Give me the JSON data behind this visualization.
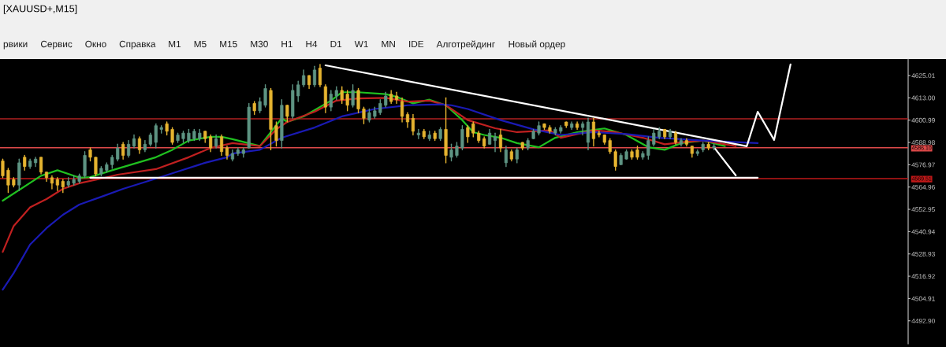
{
  "chart_data": {
    "type": "candlestick",
    "title": "[XAUUSD+,M15]",
    "annotations": [
      "рвики",
      "Сервис",
      "Окно",
      "Справка",
      "M1",
      "M5",
      "M15",
      "M30",
      "H1",
      "H4",
      "D1",
      "W1",
      "MN",
      "IDE",
      "Алготрейдинг",
      "Новый ордер"
    ],
    "categories": [
      null,
      null,
      null,
      null,
      null,
      null,
      null,
      null,
      null,
      null,
      null,
      null,
      null,
      null,
      null,
      null,
      null,
      null,
      null,
      null,
      null,
      null,
      null,
      null,
      null,
      null,
      null,
      null,
      null,
      null,
      null,
      null,
      null,
      null,
      null,
      null,
      null,
      null,
      null,
      null,
      null,
      null,
      null,
      null,
      null,
      null,
      null,
      null,
      null,
      null,
      null,
      null,
      null,
      null,
      null,
      null,
      null,
      null,
      null,
      null,
      null,
      null,
      null,
      null,
      null,
      null,
      null,
      null,
      null,
      null,
      null,
      null,
      null,
      null,
      null,
      null,
      null,
      null,
      null,
      null,
      null,
      null,
      null,
      null,
      null,
      null,
      null,
      null,
      null,
      null,
      null,
      null,
      null,
      null,
      null,
      null,
      null,
      null,
      null,
      null,
      null,
      null,
      null,
      null,
      null,
      null,
      null,
      null,
      null,
      null,
      null,
      null,
      null,
      null,
      null,
      null,
      null,
      null,
      null,
      null,
      null,
      null,
      null,
      null,
      null,
      null,
      null,
      null,
      null,
      null,
      null,
      null,
      null,
      null,
      null,
      null,
      null,
      null,
      null,
      null,
      null,
      null,
      null,
      null,
      null,
      null,
      null,
      null,
      null,
      null,
      null,
      null,
      null,
      null,
      null,
      null,
      null,
      null,
      null,
      null,
      null,
      null,
      null,
      null,
      null,
      null
    ],
    "colors": [
      "#e6b430",
      "#e6b430",
      "#e6b430",
      "#5e9483",
      "#e6b430",
      "#5e9483",
      "#5e9483",
      "#e6b430",
      "#e6b430",
      "#e6b430",
      "#e6b430",
      "#e6b430",
      "#5e9483",
      "#5e9483",
      "#5e9483",
      "#5e9483",
      "#e6b430",
      "#e6b430",
      "#5e9483",
      "#5e9483",
      "#5e9483",
      "#5e9483",
      "#e6b430",
      "#5e9483",
      "#5e9483",
      "#e6b430",
      "#5e9483",
      "#5e9483",
      "#5e9483",
      "#5e9483",
      "#e6b430",
      "#e6b430",
      "#5e9483",
      "#5e9483",
      "#5e9483",
      "#5e9483",
      "#5e9483",
      "#e6b430",
      "#e6b430",
      "#5e9483",
      "#e6b430",
      "#e6b430",
      "#5e9483",
      "#5e9483",
      "#5e9483",
      "#5e9483",
      "#e6b430",
      "#5e9483",
      "#5e9483",
      "#e6b430",
      "#e6b430",
      "#5e9483",
      "#e6b430",
      "#5e9483",
      "#5e9483",
      "#5e9483",
      "#e6b430",
      "#5e9483",
      "#e6b430",
      "#e6b430",
      "#5e9483",
      "#5e9483",
      "#e6b430",
      "#e6b430",
      "#5e9483",
      "#e6b430",
      "#e6b430",
      "#5e9483",
      "#5e9483",
      "#5e9483",
      "#5e9483",
      "#e6b430",
      "#e6b430",
      "#e6b430",
      "#e6b430",
      "#e6b430",
      "#5e9483",
      "#e6b430",
      "#5e9483",
      "#e6b430",
      "#5e9483",
      "#e6b430",
      "#5e9483",
      "#5e9483",
      "#5e9483",
      "#e6b430",
      "#e6b430",
      "#e6b430",
      "#e6b430",
      "#5e9483",
      "#5e9483",
      "#e6b430",
      "#5e9483",
      "#e6b430",
      "#5e9483",
      "#e6b430",
      "#5e9483",
      "#5e9483",
      "#5e9483",
      "#e6b430",
      "#e6b430",
      "#5e9483",
      "#5e9483",
      "#e6b430",
      "#5e9483",
      "#e6b430",
      "#5e9483",
      "#5e9483",
      "#e6b430",
      "#e6b430",
      "#e6b430",
      "#e6b430",
      "#e6b430",
      "#5e9483",
      "#5e9483",
      "#e6b430",
      "#e6b430",
      "#5e9483",
      "#5e9483",
      "#5e9483",
      "#5e9483",
      "#e6b430",
      "#5e9483",
      "#e6b430",
      "#5e9483",
      "#e6b430",
      "#e6b430",
      "#5e9483",
      "#5e9483",
      "#e6b430",
      "#5e9483",
      null,
      null,
      null,
      null,
      null,
      null,
      null,
      null,
      null,
      null,
      null,
      null,
      null,
      null,
      null,
      null,
      null,
      null,
      null,
      null,
      null,
      null,
      null,
      null,
      null,
      null,
      null,
      null,
      null,
      null,
      null,
      null,
      null,
      null,
      null
    ],
    "ohlc": [
      [
        4579,
        4580,
        4570,
        4571
      ],
      [
        4574,
        4575,
        4562,
        4566
      ],
      [
        4569,
        4570,
        4565,
        4566
      ],
      [
        4566,
        4580,
        4563,
        4578
      ],
      [
        4581,
        4582,
        4574,
        4576
      ],
      [
        4576,
        4580,
        4575,
        4579
      ],
      [
        4578,
        4581,
        4576,
        4580
      ],
      [
        4581,
        4581,
        4572,
        4573
      ],
      [
        4573,
        4573,
        4568,
        4570
      ],
      [
        4570,
        4571,
        4564,
        4567
      ],
      [
        4569,
        4570,
        4563,
        4566
      ],
      [
        4568,
        4569,
        4562,
        4565
      ],
      [
        4566,
        4570,
        4565,
        4568
      ],
      [
        4567,
        4571,
        4566,
        4569
      ],
      [
        4568,
        4572,
        4567,
        4571
      ],
      [
        4571,
        4584,
        4570,
        4582
      ],
      [
        4585,
        4586,
        4579,
        4581
      ],
      [
        4581,
        4581,
        4571,
        4572
      ],
      [
        4572,
        4576,
        4571,
        4575
      ],
      [
        4574,
        4578,
        4573,
        4577
      ],
      [
        4577,
        4582,
        4575,
        4581
      ],
      [
        4580,
        4588,
        4579,
        4586
      ],
      [
        4588,
        4589,
        4580,
        4582
      ],
      [
        4582,
        4590,
        4581,
        4588
      ],
      [
        4587,
        4593,
        4586,
        4591
      ],
      [
        4591,
        4592,
        4583,
        4585
      ],
      [
        4585,
        4590,
        4584,
        4588
      ],
      [
        4588,
        4594,
        4587,
        4593
      ],
      [
        4589,
        4599,
        4586,
        4598
      ],
      [
        4596,
        4598,
        4594,
        4597
      ],
      [
        4599,
        4600,
        4593,
        4595
      ],
      [
        4596,
        4597,
        4588,
        4589
      ],
      [
        4590,
        4594,
        4589,
        4593
      ],
      [
        4591,
        4595,
        4589,
        4594
      ],
      [
        4590,
        4596,
        4589,
        4594
      ],
      [
        4591,
        4596,
        4590,
        4595
      ],
      [
        4591,
        4596,
        4590,
        4594
      ],
      [
        4595,
        4595,
        4589,
        4591
      ],
      [
        4592,
        4593,
        4584,
        4586
      ],
      [
        4587,
        4593,
        4586,
        4591
      ],
      [
        4592,
        4593,
        4582,
        4584
      ],
      [
        4586,
        4587,
        4580,
        4582
      ],
      [
        4580,
        4585,
        4579,
        4583
      ],
      [
        4583,
        4586,
        4582,
        4585
      ],
      [
        4583,
        4586,
        4581,
        4585
      ],
      [
        4586,
        4610,
        4586,
        4608
      ],
      [
        4610,
        4611,
        4604,
        4606
      ],
      [
        4606,
        4613,
        4605,
        4611
      ],
      [
        4609,
        4620,
        4608,
        4618
      ],
      [
        4617,
        4618,
        4585,
        4596
      ],
      [
        4598,
        4600,
        4587,
        4590
      ],
      [
        4590,
        4612,
        4586,
        4609
      ],
      [
        4609,
        4609,
        4600,
        4603
      ],
      [
        4603,
        4620,
        4602,
        4617
      ],
      [
        4614,
        4622,
        4611,
        4620
      ],
      [
        4620,
        4628,
        4619,
        4625
      ],
      [
        4625,
        4625,
        4618,
        4620
      ],
      [
        4620,
        4630,
        4619,
        4628
      ],
      [
        4629,
        4631,
        4619,
        4620
      ],
      [
        4619,
        4620,
        4605,
        4608
      ],
      [
        4608,
        4617,
        4606,
        4615
      ],
      [
        4614,
        4619,
        4612,
        4617
      ],
      [
        4617,
        4619,
        4610,
        4612
      ],
      [
        4615,
        4617,
        4606,
        4609
      ],
      [
        4609,
        4620,
        4608,
        4617
      ],
      [
        4617,
        4618,
        4605,
        4607
      ],
      [
        4607,
        4608,
        4599,
        4602
      ],
      [
        4601,
        4607,
        4600,
        4605
      ],
      [
        4603,
        4608,
        4602,
        4606
      ],
      [
        4605,
        4612,
        4604,
        4610
      ],
      [
        4609,
        4616,
        4608,
        4614
      ],
      [
        4615,
        4617,
        4610,
        4611
      ],
      [
        4614,
        4616,
        4610,
        4612
      ],
      [
        4611,
        4613,
        4600,
        4603
      ],
      [
        4604,
        4605,
        4597,
        4600
      ],
      [
        4602,
        4604,
        4593,
        4595
      ],
      [
        4593,
        4596,
        4591,
        4594
      ],
      [
        4595,
        4596,
        4591,
        4592
      ],
      [
        4591,
        4595,
        4590,
        4593
      ],
      [
        4594,
        4595,
        4590,
        4591
      ],
      [
        4591,
        4597,
        4590,
        4596
      ],
      [
        4596,
        4613,
        4578,
        4582
      ],
      [
        4581,
        4588,
        4579,
        4585
      ],
      [
        4582,
        4589,
        4581,
        4587
      ],
      [
        4586,
        4598,
        4585,
        4596
      ],
      [
        4597,
        4598,
        4589,
        4592
      ],
      [
        4599,
        4600,
        4592,
        4594
      ],
      [
        4594,
        4595,
        4589,
        4590
      ],
      [
        4591,
        4592,
        4586,
        4587
      ],
      [
        4588,
        4596,
        4588,
        4594
      ],
      [
        4590,
        4594,
        4584,
        4592
      ],
      [
        4593,
        4596,
        4584,
        4586
      ],
      [
        4578,
        4587,
        4576,
        4585
      ],
      [
        4584,
        4585,
        4579,
        4580
      ],
      [
        4580,
        4586,
        4578,
        4585
      ],
      [
        4589,
        4589,
        4585,
        4586
      ],
      [
        4586,
        4591,
        4585,
        4590
      ],
      [
        4591,
        4596,
        4591,
        4595
      ],
      [
        4594,
        4600,
        4593,
        4598
      ],
      [
        4599,
        4599,
        4596,
        4597
      ],
      [
        4597,
        4598,
        4594,
        4595
      ],
      [
        4594,
        4597,
        4593,
        4596
      ],
      [
        4595,
        4598,
        4594,
        4597
      ],
      [
        4600,
        4600,
        4597,
        4598
      ],
      [
        4597,
        4600,
        4596,
        4599
      ],
      [
        4599,
        4600,
        4596,
        4597
      ],
      [
        4597,
        4600,
        4593,
        4599
      ],
      [
        4589,
        4602,
        4585,
        4600
      ],
      [
        4600,
        4602,
        4587,
        4591
      ],
      [
        4594,
        4595,
        4592,
        4593
      ],
      [
        4593,
        4593,
        4588,
        4589
      ],
      [
        4590,
        4591,
        4583,
        4584
      ],
      [
        4584,
        4585,
        4574,
        4576
      ],
      [
        4577,
        4583,
        4577,
        4582
      ],
      [
        4580,
        4585,
        4580,
        4584
      ],
      [
        4584,
        4585,
        4580,
        4581
      ],
      [
        4585,
        4587,
        4580,
        4581
      ],
      [
        4581,
        4584,
        4580,
        4583
      ],
      [
        4582,
        4592,
        4580,
        4590
      ],
      [
        4588,
        4596,
        4587,
        4594
      ],
      [
        4592,
        4597,
        4591,
        4595
      ],
      [
        4596,
        4596,
        4591,
        4592
      ],
      [
        4592,
        4596,
        4591,
        4595
      ],
      [
        4594,
        4595,
        4588,
        4589
      ],
      [
        4588,
        4591,
        4587,
        4590
      ],
      [
        4590,
        4591,
        4587,
        4588
      ],
      [
        4587,
        4587,
        4581,
        4583
      ],
      [
        4583,
        4585,
        4582,
        4584
      ],
      [
        4585,
        4589,
        4584,
        4588
      ],
      [
        4588,
        4589,
        4585,
        4586
      ],
      [
        4586,
        4588,
        4585,
        4587
      ],
      null,
      null,
      null,
      null,
      null,
      null,
      null,
      null,
      null,
      null,
      null,
      null,
      null,
      null,
      null,
      null,
      null,
      null,
      null,
      null,
      null,
      null,
      null,
      null,
      null,
      null,
      null,
      null,
      null,
      null,
      null,
      null,
      null,
      null,
      null
    ],
    "series": [
      {
        "type": "line",
        "color": "#20c020",
        "values": [
          4557.6,
          null,
          null,
          null,
          null,
          null,
          null,
          4571,
          null,
          null,
          4574,
          null,
          null,
          null,
          4570,
          null,
          4570.3,
          null,
          null,
          null,
          4574,
          null,
          null,
          null,
          4577.5,
          null,
          null,
          null,
          4581,
          null,
          null,
          4585,
          null,
          null,
          4590,
          null,
          null,
          null,
          4592,
          null,
          4592,
          null,
          4590.7,
          null,
          null,
          null,
          null,
          4587,
          null,
          4594.5,
          null,
          4602,
          4600,
          null,
          null,
          4603,
          null,
          null,
          null,
          null,
          4611.5,
          null,
          4616,
          null,
          null,
          4616,
          null,
          null,
          null,
          null,
          4615,
          null,
          4613.5,
          null,
          null,
          4610,
          null,
          null,
          4612,
          null,
          null,
          4609,
          null,
          null,
          4601,
          null,
          4594.5,
          null,
          4593,
          null,
          null,
          4591.5,
          null,
          null,
          4588.6,
          null,
          null,
          null,
          4586.4,
          null,
          null,
          4591.5,
          null,
          null,
          null,
          4594.5,
          null,
          null,
          null,
          null,
          4596.5,
          null,
          null,
          null,
          4593,
          null,
          null,
          null,
          4586.4,
          null,
          null,
          4585,
          null,
          null,
          4588.6,
          null,
          null,
          null,
          4590,
          null,
          null,
          null,
          4587,
          null,
          null,
          null,
          null,
          null,
          null,
          null,
          null,
          null,
          null,
          null,
          null,
          null,
          null,
          null,
          null,
          null,
          null,
          null,
          null,
          null,
          null,
          null,
          null,
          null,
          null,
          null,
          null,
          null,
          null,
          null,
          null,
          null
        ]
      },
      {
        "type": "line",
        "color": "#c02020",
        "values": [
          4530,
          null,
          4544,
          null,
          null,
          4554,
          null,
          null,
          4558.5,
          null,
          null,
          4564,
          null,
          null,
          4567,
          null,
          null,
          null,
          4569.5,
          null,
          null,
          4571.6,
          null,
          null,
          null,
          null,
          null,
          null,
          4574.6,
          null,
          null,
          null,
          null,
          null,
          4581,
          null,
          null,
          null,
          4586,
          null,
          null,
          null,
          4588.6,
          null,
          null,
          null,
          null,
          4587,
          null,
          null,
          4596,
          null,
          4600,
          null,
          null,
          null,
          null,
          4605.5,
          null,
          null,
          null,
          4611.5,
          null,
          null,
          null,
          4612.7,
          null,
          null,
          null,
          null,
          4613,
          null,
          null,
          null,
          4611,
          null,
          null,
          null,
          4611.5,
          null,
          null,
          4609,
          null,
          null,
          null,
          4601,
          null,
          null,
          null,
          null,
          4596.6,
          null,
          null,
          null,
          4594.5,
          null,
          null,
          null,
          null,
          null,
          4595.5,
          null,
          4591.5,
          null,
          null,
          null,
          null,
          null,
          4595.5,
          null,
          null,
          null,
          4594.5,
          null,
          null,
          null,
          null,
          4591.5,
          null,
          null,
          null,
          4588,
          null,
          null,
          4589,
          null,
          null,
          null,
          4590,
          null,
          null,
          null,
          null,
          null,
          4587,
          null,
          null,
          null,
          null,
          null,
          null,
          null,
          null,
          null,
          null,
          null,
          null,
          null,
          null,
          null,
          null,
          null,
          null,
          null,
          null,
          null,
          null,
          null,
          null,
          null,
          null,
          null,
          null,
          null,
          null,
          null
        ]
      },
      {
        "type": "line",
        "color": "#1a1ab4",
        "values": [
          4509.7,
          null,
          4518.6,
          null,
          null,
          4534,
          null,
          null,
          4542.8,
          null,
          null,
          4550,
          null,
          null,
          4555.5,
          null,
          null,
          null,
          4559.7,
          null,
          null,
          null,
          4564,
          null,
          null,
          null,
          null,
          null,
          4569.5,
          null,
          null,
          null,
          4573.3,
          null,
          null,
          null,
          null,
          4578,
          null,
          null,
          null,
          4581,
          4583,
          null,
          null,
          null,
          null,
          4585,
          null,
          null,
          null,
          4591.5,
          null,
          null,
          null,
          null,
          null,
          4597,
          null,
          null,
          null,
          null,
          4603,
          null,
          null,
          null,
          null,
          null,
          4607,
          null,
          null,
          null,
          null,
          null,
          4609,
          null,
          null,
          null,
          null,
          null,
          4609.5,
          null,
          4609,
          null,
          null,
          4607,
          null,
          null,
          null,
          null,
          null,
          4601,
          null,
          null,
          null,
          null,
          null,
          4596,
          null,
          null,
          null,
          null,
          4593,
          null,
          null,
          null,
          null,
          null,
          4594.5,
          null,
          null,
          null,
          null,
          null,
          4593.5,
          null,
          null,
          null,
          null,
          null,
          4591.5,
          null,
          null,
          null,
          4590.7,
          null,
          null,
          null,
          4590,
          null,
          null,
          null,
          null,
          null,
          null,
          null,
          null,
          null,
          4588.6,
          null,
          null,
          null,
          null,
          null,
          null,
          null,
          null,
          null,
          null,
          null,
          null,
          null,
          null,
          null,
          null,
          null,
          null,
          null,
          null,
          null,
          null,
          null,
          null,
          null,
          null,
          null
        ]
      },
      {
        "type": "line",
        "color": "#ffffff",
        "values": [
          null,
          null,
          null,
          null,
          null,
          null,
          null,
          null,
          null,
          null,
          null,
          null,
          null,
          null,
          null,
          null,
          null,
          null,
          null,
          null,
          null,
          null,
          null,
          null,
          null,
          null,
          null,
          null,
          null,
          null,
          null,
          null,
          null,
          null,
          null,
          null,
          null,
          null,
          null,
          null,
          null,
          null,
          null,
          null,
          null,
          null,
          null,
          null,
          null,
          null,
          null,
          null,
          null,
          null,
          null,
          null,
          null,
          null,
          null,
          4630.5,
          null,
          null,
          null,
          null,
          null,
          null,
          null,
          null,
          null,
          null,
          null,
          null,
          null,
          null,
          null,
          null,
          null,
          null,
          null,
          null,
          null,
          null,
          null,
          null,
          null,
          null,
          null,
          null,
          null,
          null,
          null,
          null,
          null,
          null,
          null,
          null,
          null,
          null,
          null,
          null,
          null,
          null,
          null,
          null,
          null,
          null,
          null,
          null,
          null,
          null,
          null,
          null,
          null,
          null,
          null,
          null,
          null,
          null,
          null,
          null,
          null,
          null,
          null,
          null,
          null,
          null,
          null,
          null,
          null,
          null,
          null,
          null,
          null,
          null,
          null,
          null,
          4586.9,
          null,
          4605.5,
          null,
          null,
          4590.3,
          null,
          null,
          4631,
          null,
          null,
          null,
          null,
          null,
          null,
          null,
          null,
          null,
          null,
          null,
          null,
          null,
          null,
          null,
          null,
          null,
          null,
          null,
          null,
          null
        ]
      },
      {
        "type": "line",
        "color": "#ffffff",
        "values": [
          null,
          null,
          null,
          null,
          null,
          null,
          null,
          null,
          null,
          null,
          null,
          null,
          null,
          null,
          null,
          null,
          4570,
          null,
          null,
          null,
          null,
          null,
          null,
          null,
          null,
          null,
          null,
          null,
          null,
          null,
          null,
          null,
          null,
          null,
          null,
          null,
          null,
          null,
          null,
          null,
          null,
          null,
          null,
          null,
          null,
          null,
          null,
          null,
          null,
          null,
          null,
          null,
          null,
          null,
          null,
          null,
          null,
          null,
          null,
          null,
          null,
          null,
          null,
          null,
          null,
          null,
          null,
          null,
          null,
          null,
          null,
          null,
          null,
          null,
          null,
          null,
          null,
          null,
          null,
          null,
          null,
          null,
          null,
          null,
          null,
          null,
          null,
          null,
          null,
          null,
          null,
          null,
          null,
          null,
          null,
          null,
          null,
          null,
          null,
          null,
          null,
          null,
          null,
          null,
          null,
          null,
          null,
          null,
          null,
          null,
          null,
          null,
          null,
          null,
          null,
          null,
          null,
          null,
          null,
          null,
          null,
          null,
          null,
          null,
          null,
          null,
          null,
          null,
          null,
          null,
          null,
          null,
          null,
          null,
          null,
          null,
          null,
          null,
          4570,
          null,
          null,
          null,
          null,
          null,
          null,
          null,
          null,
          null,
          null,
          null,
          null,
          null,
          null,
          null,
          null,
          null,
          null,
          null,
          null,
          null,
          null,
          null,
          null,
          null,
          null,
          null
        ]
      },
      {
        "type": "line",
        "color": "#ffffff",
        "values": [
          null,
          null,
          null,
          null,
          null,
          null,
          null,
          null,
          null,
          null,
          null,
          null,
          null,
          null,
          null,
          null,
          null,
          null,
          null,
          null,
          null,
          null,
          null,
          null,
          null,
          null,
          null,
          null,
          null,
          null,
          null,
          null,
          null,
          null,
          null,
          null,
          null,
          null,
          null,
          null,
          null,
          null,
          null,
          null,
          null,
          null,
          null,
          null,
          null,
          null,
          null,
          null,
          null,
          null,
          null,
          null,
          null,
          null,
          null,
          null,
          null,
          null,
          null,
          null,
          null,
          null,
          null,
          null,
          null,
          null,
          null,
          null,
          null,
          null,
          null,
          null,
          null,
          null,
          null,
          null,
          null,
          null,
          null,
          null,
          null,
          null,
          null,
          null,
          null,
          null,
          null,
          null,
          null,
          null,
          null,
          null,
          null,
          null,
          null,
          null,
          null,
          null,
          null,
          null,
          null,
          null,
          null,
          null,
          null,
          null,
          null,
          null,
          null,
          null,
          null,
          null,
          null,
          null,
          null,
          null,
          null,
          null,
          null,
          null,
          null,
          null,
          null,
          null,
          null,
          null,
          4586.4,
          null,
          null,
          null,
          4571.2,
          null,
          null,
          null,
          null,
          null,
          null,
          null,
          null,
          null,
          null,
          null,
          null,
          null,
          null,
          null,
          null,
          null,
          null,
          null,
          null,
          null,
          null,
          null,
          null,
          null,
          null,
          null,
          null,
          null,
          null,
          null
        ]
      }
    ],
    "ylim": [
      4480.5,
      4633.9
    ],
    "yticks": [
      4625.01,
      {
        "value": 4613,
        "label": "4613.00"
      },
      4600.99,
      4588.98,
      4576.97,
      4564.96,
      4552.95,
      4540.94,
      4528.93,
      4516.92,
      4504.91,
      {
        "value": 4492.9,
        "label": "4492.90"
      }
    ],
    "ref_lines": [
      {
        "axis": "y",
        "value": 4601.7,
        "color": "#b02020"
      },
      {
        "axis": "y",
        "value": 4586.1,
        "label": "4586.10",
        "color": "#e04a4a"
      },
      {
        "axis": "y",
        "value": 4569.51,
        "label": "4569.51",
        "color": "#c01818"
      }
    ],
    "tick_labels": "y",
    "grid": false,
    "legend": false
  }
}
